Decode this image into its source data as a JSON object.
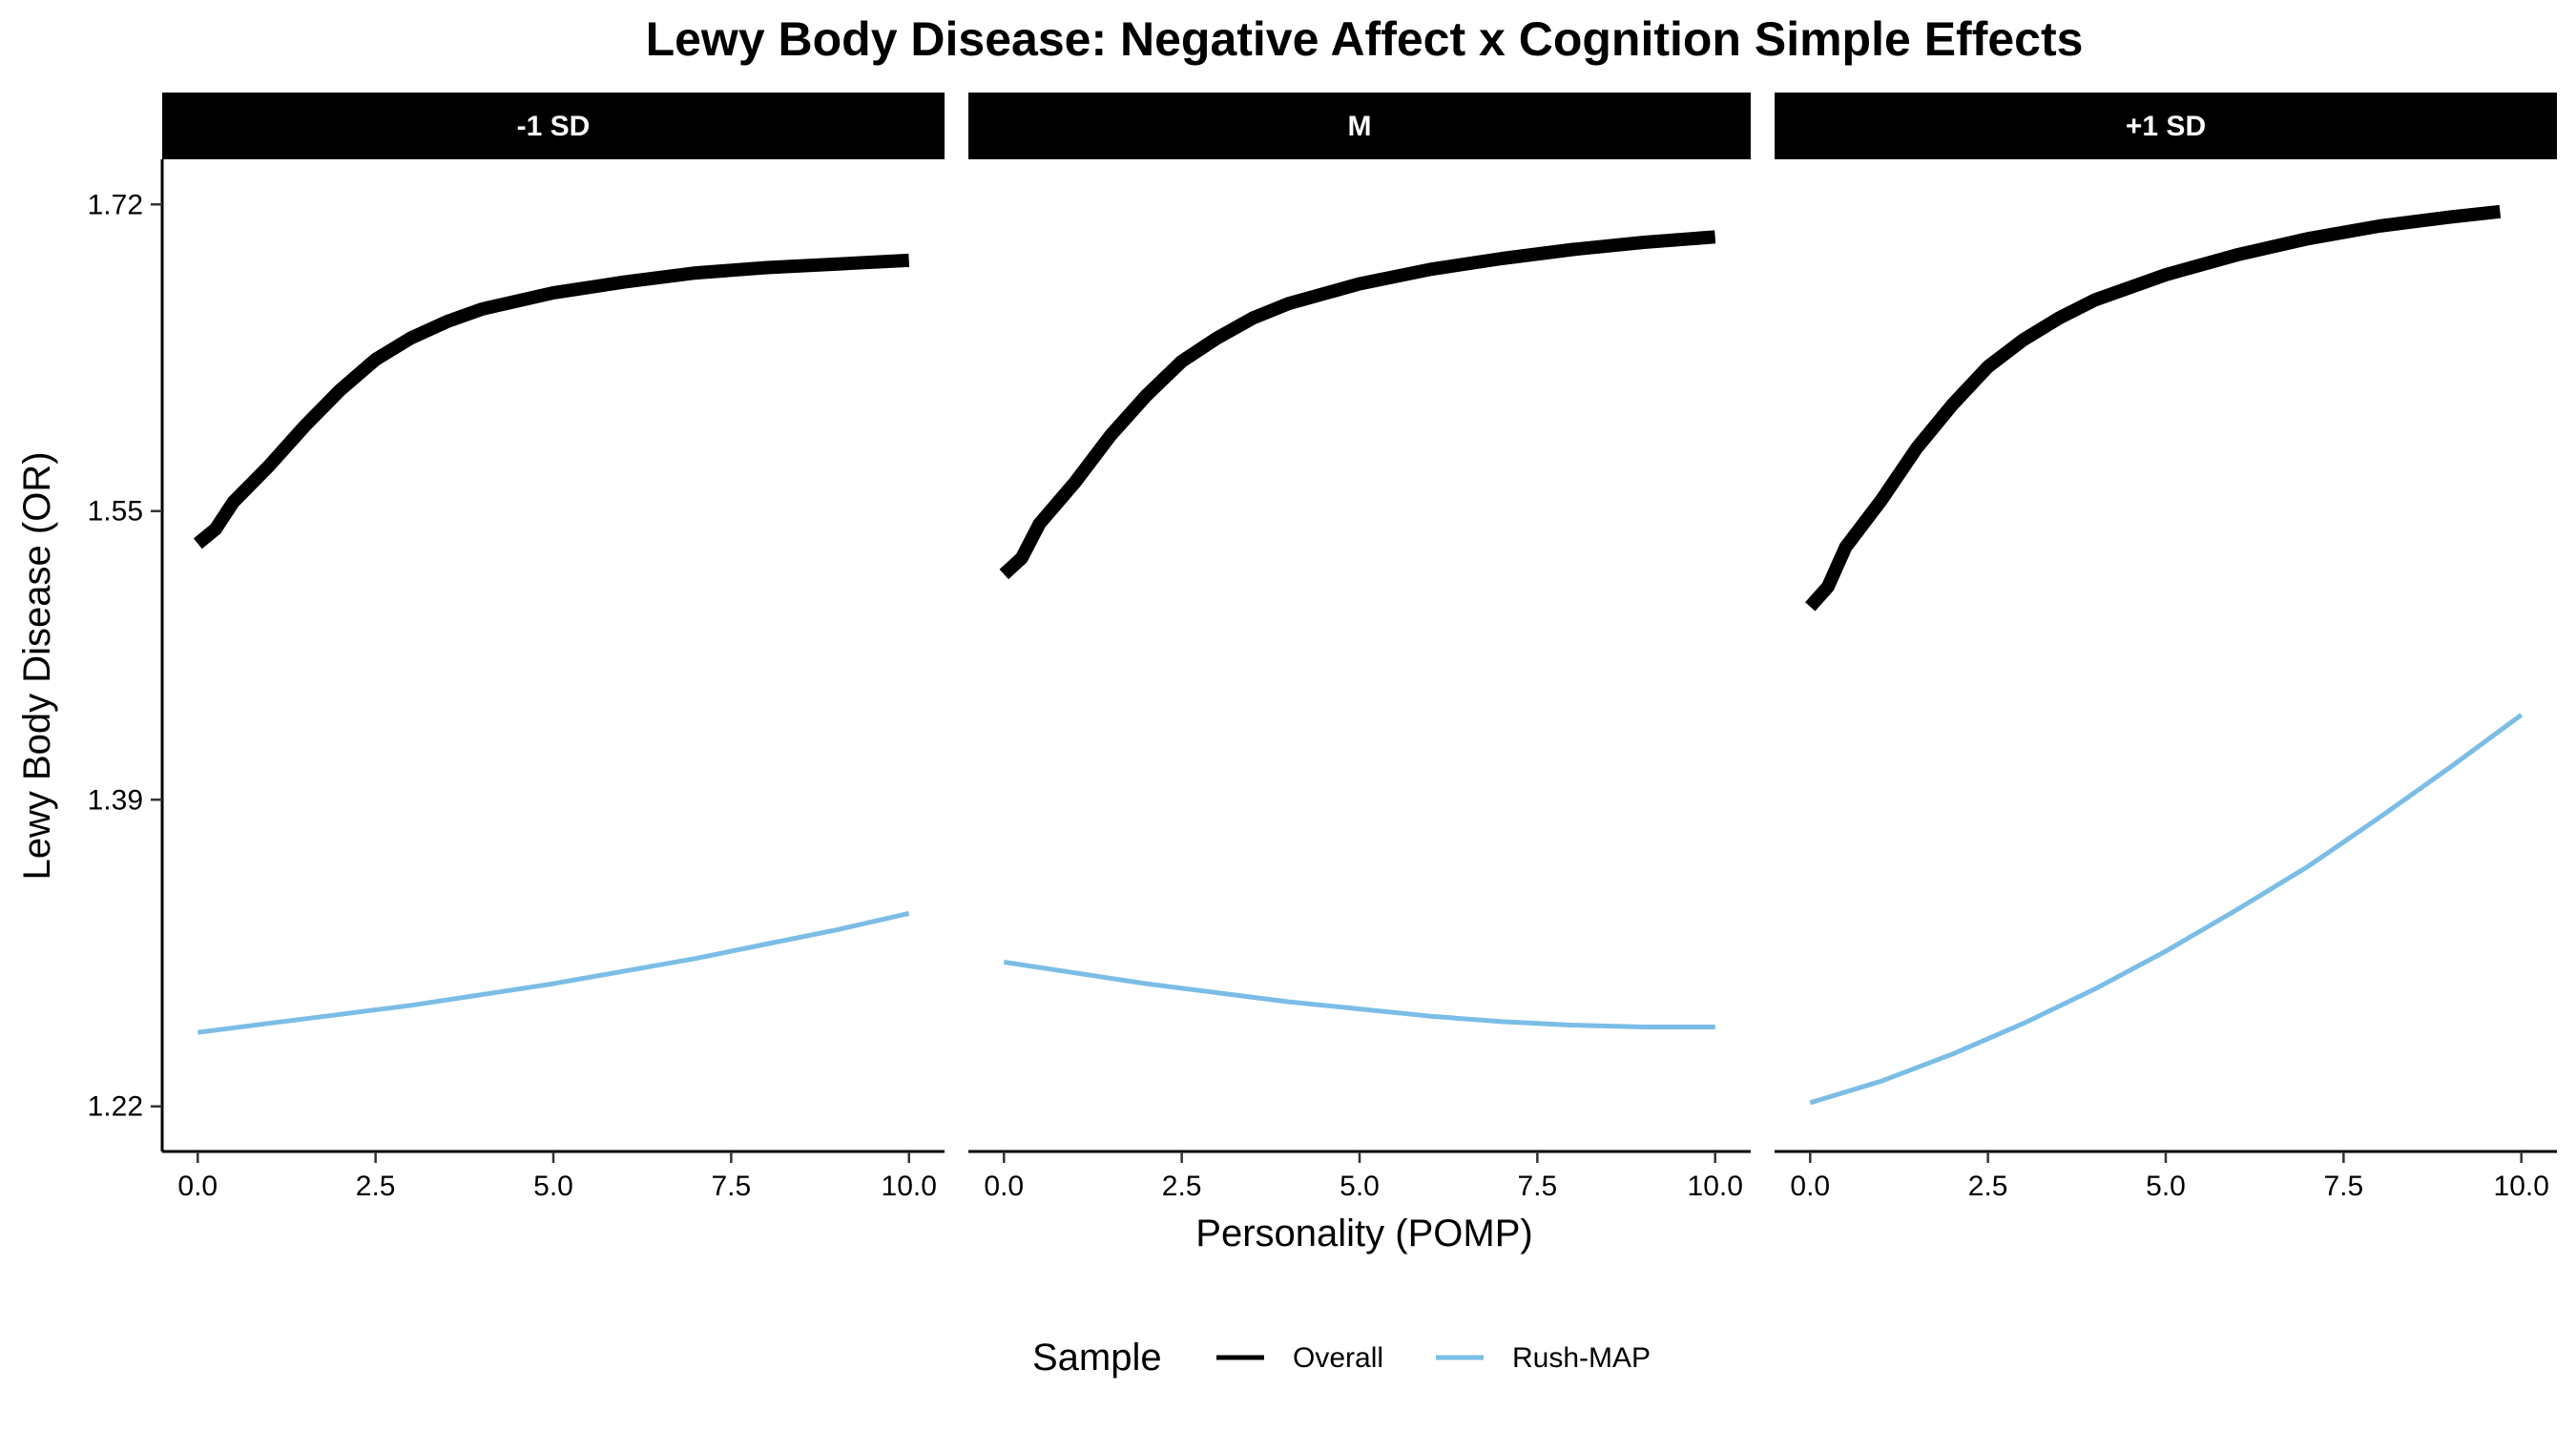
{
  "chart_data": {
    "type": "line",
    "title": "Lewy Body Disease: Negative Affect x Cognition Simple Effects",
    "xlabel": "Personality (POMP)",
    "ylabel": "Lewy Body Disease (OR)",
    "xlim": [
      -0.5,
      10.5
    ],
    "ylim": [
      1.195,
      1.745
    ],
    "x_ticks": [
      0,
      2.5,
      5,
      7.5,
      10
    ],
    "x_tick_labels": [
      "0.0",
      "2.5",
      "5.0",
      "7.5",
      "10.0"
    ],
    "y_ticks": [
      1.22,
      1.39,
      1.55,
      1.72
    ],
    "y_tick_labels": [
      "1.22",
      "1.39",
      "1.55",
      "1.72"
    ],
    "grid": false,
    "legend": {
      "title": "Sample",
      "position": "bottom",
      "entries": [
        {
          "label": "Overall",
          "color": "#000000"
        },
        {
          "label": "Rush-MAP",
          "color": "#7BBDE6"
        }
      ]
    },
    "panels": [
      {
        "label": "-1 SD",
        "series": [
          {
            "name": "Overall",
            "color": "#000000",
            "x": [
              0,
              0.25,
              0.5,
              1,
              1.5,
              2,
              2.5,
              3,
              3.5,
              4,
              5,
              6,
              7,
              8,
              9,
              10
            ],
            "y": [
              1.532,
              1.54,
              1.555,
              1.575,
              1.597,
              1.617,
              1.634,
              1.646,
              1.655,
              1.662,
              1.671,
              1.677,
              1.682,
              1.685,
              1.687,
              1.689
            ]
          },
          {
            "name": "Rush-MAP",
            "color": "#7BBDE6",
            "x": [
              0,
              1,
              2,
              3,
              4,
              5,
              6,
              7,
              8,
              9,
              10
            ],
            "y": [
              1.261,
              1.266,
              1.271,
              1.276,
              1.282,
              1.288,
              1.295,
              1.302,
              1.31,
              1.318,
              1.327
            ]
          }
        ]
      },
      {
        "label": "M",
        "series": [
          {
            "name": "Overall",
            "color": "#000000",
            "x": [
              0,
              0.25,
              0.5,
              1,
              1.5,
              2,
              2.5,
              3,
              3.5,
              4,
              5,
              6,
              7,
              8,
              9,
              10
            ],
            "y": [
              1.515,
              1.524,
              1.543,
              1.566,
              1.592,
              1.614,
              1.633,
              1.646,
              1.657,
              1.665,
              1.676,
              1.684,
              1.69,
              1.695,
              1.699,
              1.702
            ]
          },
          {
            "name": "Rush-MAP",
            "color": "#7BBDE6",
            "x": [
              0,
              1,
              2,
              3,
              4,
              5,
              6,
              7,
              8,
              9,
              10
            ],
            "y": [
              1.3,
              1.294,
              1.288,
              1.283,
              1.278,
              1.274,
              1.27,
              1.267,
              1.265,
              1.264,
              1.264
            ]
          }
        ]
      },
      {
        "label": "+1 SD",
        "series": [
          {
            "name": "Overall",
            "color": "#000000",
            "x": [
              0,
              0.25,
              0.5,
              1,
              1.5,
              2,
              2.5,
              3,
              3.5,
              4,
              5,
              6,
              7,
              8,
              9,
              9.7
            ],
            "y": [
              1.497,
              1.508,
              1.53,
              1.556,
              1.585,
              1.609,
              1.63,
              1.645,
              1.657,
              1.667,
              1.681,
              1.692,
              1.701,
              1.708,
              1.713,
              1.716
            ]
          },
          {
            "name": "Rush-MAP",
            "color": "#7BBDE6",
            "x": [
              0,
              1,
              2,
              3,
              4,
              5,
              6,
              7,
              8,
              9,
              10
            ],
            "y": [
              1.222,
              1.234,
              1.249,
              1.266,
              1.285,
              1.306,
              1.329,
              1.353,
              1.38,
              1.408,
              1.437
            ]
          }
        ]
      }
    ]
  }
}
